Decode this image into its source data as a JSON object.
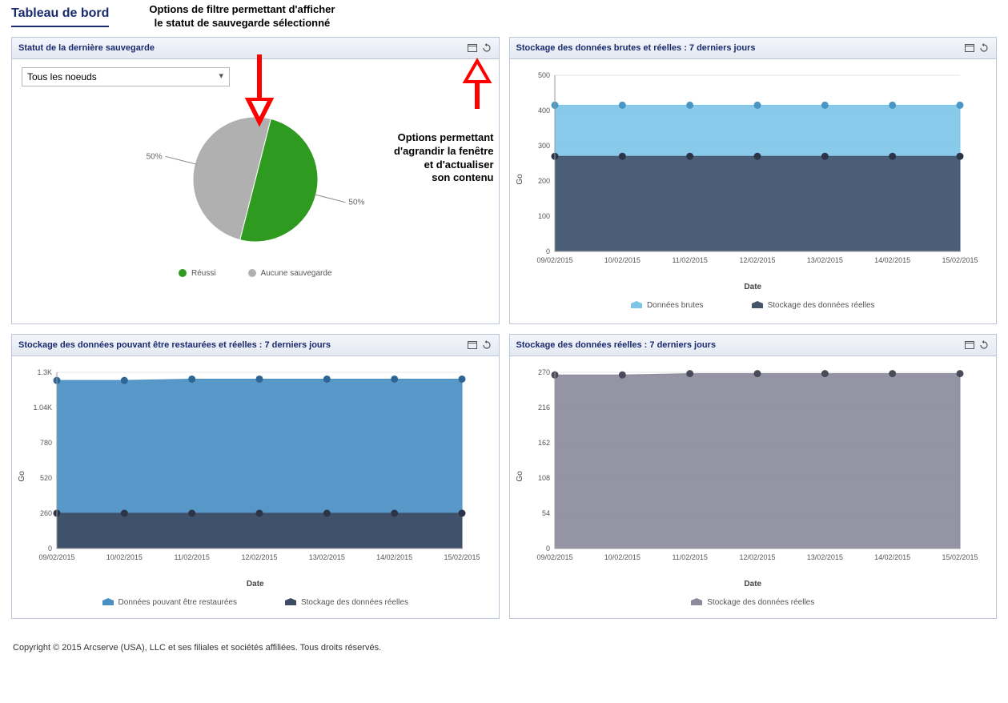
{
  "page": {
    "title": "Tableau de bord",
    "copyright": "Copyright © 2015 Arcserve (USA), LLC et ses filiales et sociétés affiliées. Tous droits réservés."
  },
  "annotations": {
    "top": "Options de filtre permettant d'afficher\nle statut de sauvegarde sélectionné",
    "right": "Options permettant\nd'agrandir la fenêtre\net d'actualiser\nson contenu"
  },
  "arrows": {
    "color": "#ff0000",
    "stroke_width": 4
  },
  "panels": {
    "backup_status": {
      "title": "Statut de la dernière sauvegarde",
      "dropdown": {
        "selected": "Tous les noeuds"
      },
      "pie": {
        "type": "pie",
        "slices": [
          {
            "label": "Réussi",
            "value": 50,
            "color": "#2e9a1f",
            "callout": "50%"
          },
          {
            "label": "Aucune sauvegarde",
            "value": 50,
            "color": "#b0b0b0",
            "callout": "50%"
          }
        ],
        "radius": 78
      }
    },
    "raw_vs_actual": {
      "title": "Stockage des données brutes et réelles : 7 derniers jours",
      "chart": {
        "type": "area",
        "ylabel": "Go",
        "xlabel": "Date",
        "ylim": [
          0,
          500
        ],
        "ytick_step": 100,
        "dates": [
          "09/02/2015",
          "10/02/2015",
          "11/02/2015",
          "12/02/2015",
          "13/02/2015",
          "14/02/2015",
          "15/02/2015"
        ],
        "series": [
          {
            "name": "Données brutes",
            "color": "#7fc5e8",
            "marker_color": "#4a97c4",
            "values": [
              415,
              415,
              415,
              415,
              415,
              415,
              415
            ]
          },
          {
            "name": "Stockage des données réelles",
            "color": "#45556e",
            "marker_color": "#2c3548",
            "values": [
              270,
              270,
              270,
              270,
              270,
              270,
              270
            ]
          }
        ],
        "grid_color": "#e4e4e4",
        "background": "#ffffff"
      }
    },
    "restorable_vs_actual": {
      "title": "Stockage des données pouvant être restaurées et réelles : 7 derniers jours",
      "chart": {
        "type": "area",
        "ylabel": "Go",
        "xlabel": "Date",
        "yticks": [
          "0",
          "260",
          "520",
          "780",
          "1.04K",
          "1.3K"
        ],
        "yvalues": [
          0,
          260,
          520,
          780,
          1040,
          1300
        ],
        "dates": [
          "09/02/2015",
          "10/02/2015",
          "11/02/2015",
          "12/02/2015",
          "13/02/2015",
          "14/02/2015",
          "15/02/2015"
        ],
        "series": [
          {
            "name": "Données pouvant être restaurées",
            "color": "#4a8fc4",
            "marker_color": "#2d6694",
            "values": [
              1240,
              1240,
              1250,
              1250,
              1250,
              1250,
              1250
            ]
          },
          {
            "name": "Stockage des données réelles",
            "color": "#3e4c63",
            "marker_color": "#2c3548",
            "values": [
              260,
              260,
              260,
              260,
              260,
              260,
              260
            ]
          }
        ],
        "grid_color": "#e4e4e4",
        "background": "#ffffff"
      }
    },
    "actual_only": {
      "title": "Stockage des données réelles : 7 derniers jours",
      "chart": {
        "type": "area",
        "ylabel": "Go",
        "xlabel": "Date",
        "yticks": [
          "0",
          "54",
          "108",
          "162",
          "216",
          "270"
        ],
        "yvalues": [
          0,
          54,
          108,
          162,
          216,
          270
        ],
        "dates": [
          "09/02/2015",
          "10/02/2015",
          "11/02/2015",
          "12/02/2015",
          "13/02/2015",
          "14/02/2015",
          "15/02/2015"
        ],
        "series": [
          {
            "name": "Stockage des données réelles",
            "color": "#8b8b9c",
            "marker_color": "#4a4a5a",
            "values": [
              266,
              266,
              268,
              268,
              268,
              268,
              268
            ]
          }
        ],
        "grid_color": "#e4e4e4",
        "background": "#ffffff"
      }
    }
  }
}
